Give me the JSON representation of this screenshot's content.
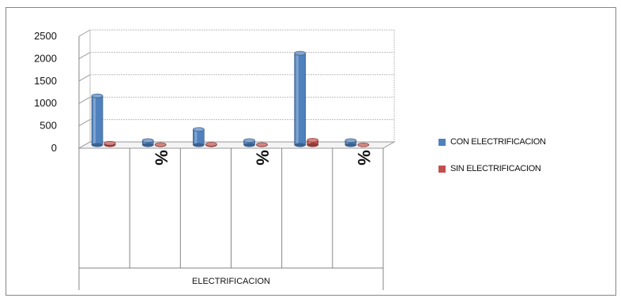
{
  "chart_data": {
    "type": "bar",
    "style": "3d-cylinder",
    "categories": [
      "",
      "%",
      "",
      "%",
      "",
      "%"
    ],
    "category_groups": [
      "",
      "",
      ""
    ],
    "axis_group_label": "ELECTRIFICACION",
    "series": [
      {
        "name": "CON ELECTRIFICACION",
        "values": [
          1100,
          100,
          350,
          100,
          2050,
          100
        ],
        "color": "#4f81bd"
      },
      {
        "name": "SIN ELECTRIFICACION",
        "values": [
          40,
          10,
          20,
          10,
          110,
          5
        ],
        "color": "#c0504d"
      }
    ],
    "yticks": [
      0,
      500,
      1000,
      1500,
      2000,
      2500
    ],
    "ylim": [
      0,
      2500
    ],
    "grid": true,
    "legend_position": "right",
    "title": "",
    "ylabel": "",
    "xlabel": ""
  }
}
